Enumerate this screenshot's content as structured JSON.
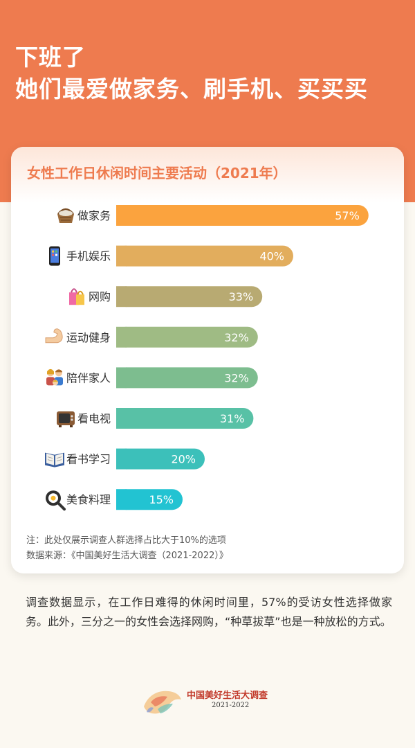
{
  "header": {
    "headline_line1": "下班了",
    "headline_line2": "她们最爱做家务、刷手机、买买买"
  },
  "card": {
    "title": "女性工作日休闲时间主要活动（2021年）",
    "note_line1": "注：此处仅展示调查人群选择占比大于10%的选项",
    "note_line2": "数据来源：《中国美好生活大调查（2021-2022）》"
  },
  "chart_data": {
    "type": "bar",
    "orientation": "horizontal",
    "title": "女性工作日休闲时间主要活动（2021年）",
    "categories": [
      "做家务",
      "手机娱乐",
      "网购",
      "运动健身",
      "陪伴家人",
      "看电视",
      "看书学习",
      "美食料理"
    ],
    "values": [
      57,
      40,
      33,
      32,
      32,
      31,
      20,
      15
    ],
    "value_labels": [
      "57%",
      "40%",
      "33%",
      "32%",
      "32%",
      "31%",
      "20%",
      "15%"
    ],
    "icons": [
      "basket-icon",
      "phone-icon",
      "shopping-bags-icon",
      "flexed-arm-icon",
      "family-icon",
      "television-icon",
      "open-book-icon",
      "frying-pan-icon"
    ],
    "colors": [
      "#fba33e",
      "#e2ad5d",
      "#b8aa72",
      "#9fbb84",
      "#7dbd8f",
      "#58c1a6",
      "#3cc0ba",
      "#22c3d2"
    ],
    "unit": "%",
    "grid": false,
    "legend": "none"
  },
  "description": {
    "text": "调查数据显示，在工作日难得的休闲时间里，57%的受访女性选择做家务。此外，三分之一的女性会选择网购，“种草拔草”也是一种放松的方式。"
  },
  "footer": {
    "brand": "中国美好生活大调查",
    "years": "2021-2022"
  },
  "colors": {
    "accent": "#ee7b4f",
    "background": "#fbf8f1",
    "card": "#ffffff",
    "brand_red": "#c23a2b"
  }
}
